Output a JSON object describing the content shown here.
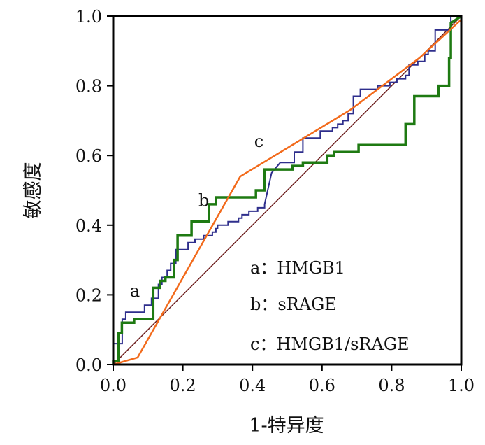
{
  "chart_data": {
    "type": "line",
    "title": "",
    "xlabel": "1-特异度",
    "ylabel": "敏感度",
    "xlim": [
      0,
      1
    ],
    "ylim": [
      0,
      1
    ],
    "xticks": [
      "0.0",
      "0.2",
      "0.4",
      "0.6",
      "0.8",
      "1.0"
    ],
    "yticks": [
      "0.0",
      "0.2",
      "0.4",
      "0.6",
      "0.8",
      "1.0"
    ],
    "grid": false,
    "legend_position": "bottom-right",
    "legend": [
      "a：HMGB1",
      "b：sRAGE",
      "c：HMGB1/sRAGE"
    ],
    "annotations": [
      {
        "text": "a",
        "x": 0.048,
        "y": 0.195
      },
      {
        "text": "b",
        "x": 0.245,
        "y": 0.455
      },
      {
        "text": "c",
        "x": 0.405,
        "y": 0.625
      }
    ],
    "series": [
      {
        "color": "#2e2e8c",
        "x": [
          0.0,
          0.0,
          0.026,
          0.026,
          0.036,
          0.036,
          0.09,
          0.09,
          0.11,
          0.11,
          0.13,
          0.13,
          0.14,
          0.14,
          0.155,
          0.155,
          0.165,
          0.165,
          0.18,
          0.18,
          0.215,
          0.215,
          0.235,
          0.235,
          0.26,
          0.26,
          0.285,
          0.285,
          0.295,
          0.295,
          0.3,
          0.3,
          0.33,
          0.33,
          0.36,
          0.36,
          0.37,
          0.37,
          0.39,
          0.39,
          0.415,
          0.415,
          0.435,
          0.435,
          0.455,
          0.48,
          0.52,
          0.52,
          0.545,
          0.545,
          0.595,
          0.595,
          0.63,
          0.63,
          0.645,
          0.645,
          0.66,
          0.66,
          0.675,
          0.675,
          0.69,
          0.69,
          0.71,
          0.71,
          0.76,
          0.76,
          0.795,
          0.795,
          0.815,
          0.815,
          0.84,
          0.84,
          0.85,
          0.85,
          0.875,
          0.875,
          0.895,
          0.895,
          0.905,
          0.905,
          0.925,
          0.925,
          0.97,
          0.97,
          1.0
        ],
        "y": [
          0.0,
          0.06,
          0.06,
          0.13,
          0.13,
          0.15,
          0.15,
          0.17,
          0.17,
          0.19,
          0.19,
          0.23,
          0.23,
          0.25,
          0.25,
          0.27,
          0.27,
          0.29,
          0.29,
          0.33,
          0.33,
          0.35,
          0.35,
          0.36,
          0.36,
          0.37,
          0.37,
          0.38,
          0.38,
          0.39,
          0.39,
          0.4,
          0.4,
          0.41,
          0.41,
          0.42,
          0.42,
          0.43,
          0.43,
          0.44,
          0.44,
          0.45,
          0.45,
          0.46,
          0.55,
          0.58,
          0.58,
          0.61,
          0.61,
          0.65,
          0.65,
          0.67,
          0.67,
          0.68,
          0.68,
          0.69,
          0.69,
          0.7,
          0.7,
          0.72,
          0.72,
          0.77,
          0.77,
          0.79,
          0.79,
          0.8,
          0.8,
          0.81,
          0.81,
          0.82,
          0.82,
          0.83,
          0.83,
          0.86,
          0.86,
          0.87,
          0.87,
          0.89,
          0.89,
          0.9,
          0.9,
          0.96,
          0.96,
          1.0,
          1.0
        ]
      },
      {
        "color": "#1e7a12",
        "x": [
          0.0,
          0.0,
          0.015,
          0.015,
          0.025,
          0.025,
          0.06,
          0.06,
          0.115,
          0.115,
          0.135,
          0.135,
          0.15,
          0.15,
          0.175,
          0.175,
          0.185,
          0.185,
          0.225,
          0.225,
          0.275,
          0.275,
          0.295,
          0.295,
          0.41,
          0.41,
          0.435,
          0.435,
          0.515,
          0.515,
          0.545,
          0.545,
          0.615,
          0.615,
          0.635,
          0.635,
          0.705,
          0.705,
          0.84,
          0.84,
          0.865,
          0.865,
          0.935,
          0.935,
          0.965,
          0.965,
          0.97,
          0.97,
          1.0
        ],
        "y": [
          0.0,
          0.01,
          0.01,
          0.09,
          0.09,
          0.12,
          0.12,
          0.13,
          0.13,
          0.22,
          0.22,
          0.24,
          0.24,
          0.25,
          0.25,
          0.3,
          0.3,
          0.37,
          0.37,
          0.41,
          0.41,
          0.46,
          0.46,
          0.48,
          0.48,
          0.5,
          0.5,
          0.56,
          0.56,
          0.57,
          0.57,
          0.58,
          0.58,
          0.6,
          0.6,
          0.61,
          0.61,
          0.63,
          0.63,
          0.69,
          0.69,
          0.77,
          0.77,
          0.8,
          0.8,
          0.88,
          0.88,
          0.98,
          1.0
        ]
      },
      {
        "color": "#f26a1b",
        "x": [
          0.0,
          0.07,
          0.365,
          0.68,
          0.88,
          1.0
        ],
        "y": [
          0.0,
          0.02,
          0.54,
          0.73,
          0.88,
          0.99
        ]
      },
      {
        "color": "#6b1a1a",
        "x": [
          0.0,
          1.0
        ],
        "y": [
          0.0,
          1.0
        ]
      }
    ]
  }
}
